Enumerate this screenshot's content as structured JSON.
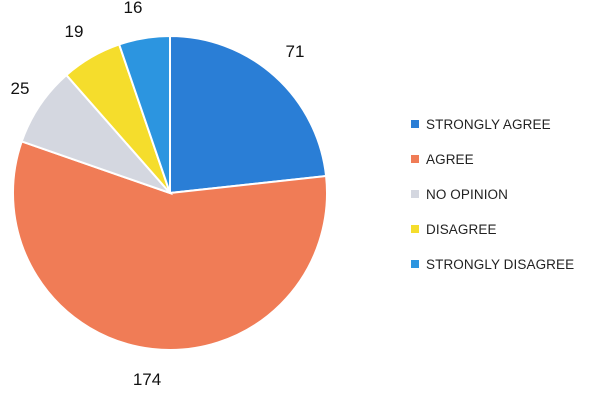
{
  "chart_data": {
    "type": "pie",
    "title": "",
    "categories": [
      "STRONGLY AGREE",
      "AGREE",
      "NO OPINION",
      "DISAGREE",
      "STRONGLY DISAGREE"
    ],
    "values": [
      71,
      174,
      25,
      19,
      16
    ],
    "colors": [
      "#2a7ed6",
      "#f07c56",
      "#d4d7e0",
      "#f5dd2c",
      "#2c95e0"
    ],
    "data_labels": [
      "71",
      "174",
      "25",
      "19",
      "16"
    ],
    "legend_position": "right",
    "start_angle_deg": 0,
    "direction": "clockwise"
  }
}
